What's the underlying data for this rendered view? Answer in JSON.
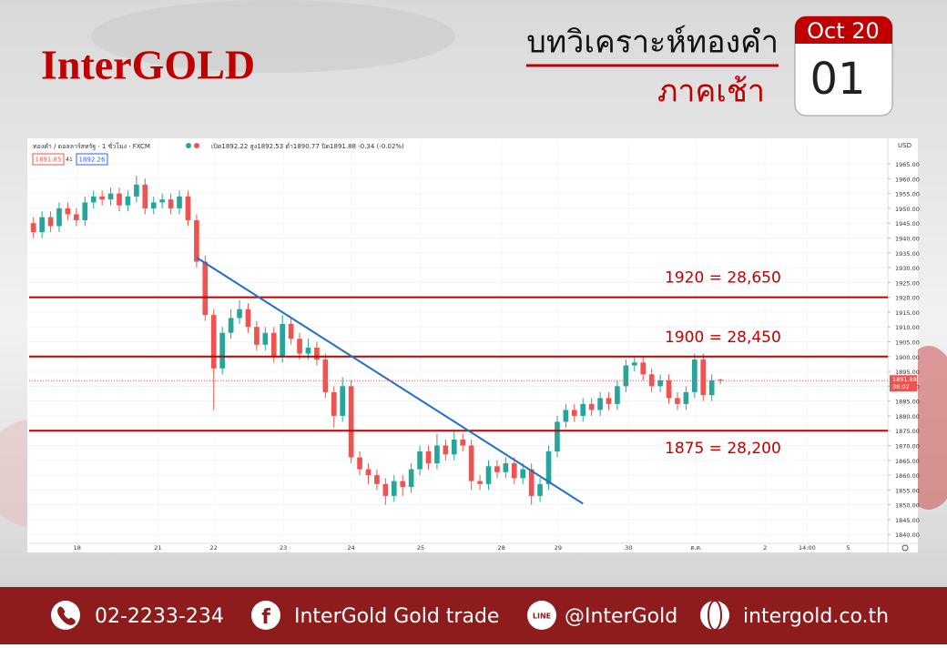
{
  "header": {
    "logo": "InterGOLD",
    "title": "บทวิเคราะห์ทองคำ",
    "subtitle": "ภาคเช้า",
    "calendar": {
      "month": "Oct 20",
      "day": "01"
    }
  },
  "chart_data": {
    "type": "candlestick",
    "symbol": "ทองคำ / ดอลลาร์สหรัฐ · 1 ชั่วโมง · FXCM",
    "ohlc_text": "เปิด1892.22 สูง1892.53 ต่ำ1890.77 ปิด1891.88 -0.34 (-0.02%)",
    "badges": [
      "1891.85",
      "41",
      "1892.26"
    ],
    "currency": "USD",
    "last_price": 1891.88,
    "countdown": "38:02",
    "open": [
      1945,
      1942,
      1947,
      1944,
      1950,
      1948,
      1946,
      1952,
      1954,
      1953,
      1955,
      1951,
      1954,
      1958,
      1950,
      1952,
      1953,
      1950,
      1954,
      1946,
      1932,
      1914,
      1896,
      1908,
      1913,
      1916,
      1910,
      1904,
      1908,
      1900,
      1911,
      1906,
      1901,
      1903,
      1899,
      1888,
      1880,
      1890,
      1866,
      1862,
      1860,
      1857,
      1853,
      1858,
      1856,
      1862,
      1868,
      1864,
      1870,
      1867,
      1872,
      1870,
      1858,
      1857,
      1863,
      1861,
      1864,
      1859,
      1862,
      1853,
      1857,
      1868,
      1878,
      1882,
      1880,
      1884,
      1882,
      1886,
      1884,
      1890,
      1897,
      1898,
      1894,
      1890,
      1892,
      1886,
      1884,
      1888,
      1899,
      1887,
      1892.22
    ],
    "high": [
      1947,
      1949,
      1949,
      1952,
      1952,
      1950,
      1954,
      1956,
      1956,
      1957,
      1957,
      1956,
      1961,
      1960,
      1954,
      1955,
      1955,
      1956,
      1956,
      1948,
      1934,
      1916,
      1910,
      1916,
      1919,
      1918,
      1912,
      1910,
      1910,
      1914,
      1913,
      1908,
      1906,
      1905,
      1901,
      1890,
      1893,
      1892,
      1868,
      1864,
      1862,
      1859,
      1860,
      1860,
      1864,
      1870,
      1870,
      1874,
      1872,
      1875,
      1874,
      1872,
      1860,
      1865,
      1865,
      1866,
      1866,
      1864,
      1864,
      1859,
      1870,
      1880,
      1884,
      1884,
      1886,
      1886,
      1888,
      1888,
      1892,
      1899,
      1900,
      1900,
      1896,
      1894,
      1894,
      1888,
      1890,
      1901,
      1901,
      1894,
      1892.53
    ],
    "low": [
      1940,
      1940,
      1942,
      1942,
      1946,
      1944,
      1944,
      1950,
      1951,
      1951,
      1949,
      1949,
      1952,
      1948,
      1948,
      1950,
      1948,
      1948,
      1944,
      1930,
      1912,
      1882,
      1894,
      1906,
      1911,
      1908,
      1902,
      1902,
      1898,
      1898,
      1904,
      1899,
      1899,
      1897,
      1886,
      1876,
      1878,
      1864,
      1860,
      1857,
      1855,
      1850,
      1851,
      1853,
      1854,
      1860,
      1862,
      1862,
      1865,
      1865,
      1868,
      1855,
      1855,
      1855,
      1859,
      1859,
      1857,
      1857,
      1850,
      1851,
      1855,
      1866,
      1876,
      1878,
      1878,
      1880,
      1880,
      1882,
      1882,
      1888,
      1895,
      1892,
      1888,
      1888,
      1884,
      1882,
      1882,
      1886,
      1885,
      1885,
      1890.77
    ],
    "close": [
      1942,
      1947,
      1944,
      1950,
      1948,
      1946,
      1952,
      1954,
      1953,
      1955,
      1951,
      1954,
      1958,
      1950,
      1952,
      1953,
      1950,
      1954,
      1946,
      1932,
      1914,
      1896,
      1908,
      1913,
      1916,
      1910,
      1904,
      1908,
      1900,
      1911,
      1906,
      1901,
      1903,
      1899,
      1888,
      1880,
      1890,
      1866,
      1862,
      1860,
      1857,
      1853,
      1858,
      1856,
      1862,
      1868,
      1864,
      1870,
      1867,
      1872,
      1870,
      1858,
      1857,
      1863,
      1861,
      1864,
      1859,
      1862,
      1853,
      1857,
      1868,
      1878,
      1882,
      1880,
      1884,
      1882,
      1886,
      1884,
      1890,
      1897,
      1898,
      1894,
      1890,
      1892,
      1886,
      1884,
      1888,
      1899,
      1887,
      1892,
      1891.88
    ],
    "up_color": "#26a69a",
    "down_color": "#ef5350",
    "xlim": [
      -0.5,
      99.5
    ],
    "xticks": [
      {
        "value": 5.1,
        "label": "18"
      },
      {
        "value": 14.5,
        "label": "21"
      },
      {
        "value": 21,
        "label": "22"
      },
      {
        "value": 29.1,
        "label": "23"
      },
      {
        "value": 37,
        "label": "24"
      },
      {
        "value": 45.1,
        "label": "25"
      },
      {
        "value": 54.5,
        "label": "28"
      },
      {
        "value": 61.1,
        "label": "29"
      },
      {
        "value": 69.3,
        "label": "30"
      },
      {
        "value": 77.2,
        "label": "ต.ค."
      },
      {
        "value": 85.2,
        "label": "2"
      },
      {
        "value": 90.1,
        "label": "14:00"
      },
      {
        "value": 94.9,
        "label": "5"
      }
    ],
    "ylim": [
      1837,
      1973
    ],
    "yticks": [
      {
        "value": 1840,
        "label": "1840.00"
      },
      {
        "value": 1845,
        "label": "1845.00"
      },
      {
        "value": 1850,
        "label": "1850.00"
      },
      {
        "value": 1855,
        "label": "1855.00"
      },
      {
        "value": 1860,
        "label": "1860.00"
      },
      {
        "value": 1865,
        "label": "1865.00"
      },
      {
        "value": 1870,
        "label": "1870.00"
      },
      {
        "value": 1875,
        "label": "1875.00"
      },
      {
        "value": 1880,
        "label": "1880.00"
      },
      {
        "value": 1885,
        "label": "1885.00"
      },
      {
        "value": 1890,
        "label": "1890.00"
      },
      {
        "value": 1895,
        "label": "1895.00"
      },
      {
        "value": 1900,
        "label": "1900.00"
      },
      {
        "value": 1905,
        "label": "1905.00"
      },
      {
        "value": 1910,
        "label": "1910.00"
      },
      {
        "value": 1915,
        "label": "1915.00"
      },
      {
        "value": 1920,
        "label": "1920.00"
      },
      {
        "value": 1925,
        "label": "1925.00"
      },
      {
        "value": 1930,
        "label": "1930.00"
      },
      {
        "value": 1935,
        "label": "1935.00"
      },
      {
        "value": 1940,
        "label": "1940.00"
      },
      {
        "value": 1945,
        "label": "1945.00"
      },
      {
        "value": 1950,
        "label": "1950.00"
      },
      {
        "value": 1955,
        "label": "1955.00"
      },
      {
        "value": 1960,
        "label": "1960.00"
      },
      {
        "value": 1965,
        "label": "1965.00"
      }
    ],
    "grid": true,
    "levels": [
      {
        "value": 1920,
        "label": "1920 = 28,650"
      },
      {
        "value": 1900,
        "label": "1900 = 28,450"
      },
      {
        "value": 1875,
        "label": "1875 = 28,200"
      }
    ],
    "level_color": "#c00000",
    "trend_line": {
      "x": [
        19,
        64
      ],
      "y": [
        1933.4,
        1850.4
      ],
      "color": "#1f6fc4"
    }
  },
  "footer": {
    "phone": "02-2233-234",
    "facebook": "InterGold Gold trade",
    "line": "@InterGold",
    "website": "intergold.co.th"
  }
}
